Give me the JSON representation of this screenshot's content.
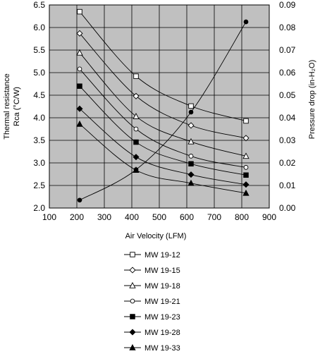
{
  "chart_data": {
    "type": "line",
    "xlabel": "Air Velocity (LFM)",
    "ylabel_left_line1": "Thermal resistance",
    "ylabel_left_line2": "Rca (°C/W)",
    "ylabel_right": "Pressure drop  (in-H₂O)",
    "xlim": [
      100,
      900
    ],
    "ylim_left": [
      2.0,
      6.5
    ],
    "ylim_right": [
      0.0,
      0.09
    ],
    "x_ticks": [
      "100",
      "200",
      "300",
      "400",
      "500",
      "600",
      "700",
      "800",
      "900"
    ],
    "y_left_ticks": [
      "2.0",
      "2.5",
      "3.0",
      "3.5",
      "4.0",
      "4.5",
      "5.0",
      "5.5",
      "6.0",
      "6.5"
    ],
    "y_right_ticks": [
      "0.00",
      "0.01",
      "0.02",
      "0.03",
      "0.04",
      "0.05",
      "0.06",
      "0.07",
      "0.08",
      "0.09"
    ],
    "grid": true,
    "background": "#c0c0c0",
    "series": [
      {
        "name": "MW 19-12",
        "marker": "square-open",
        "x": [
          200,
          400,
          600,
          800
        ],
        "y": [
          6.35,
          4.92,
          4.26,
          3.93
        ]
      },
      {
        "name": "MW 19-15",
        "marker": "diamond-open",
        "x": [
          200,
          400,
          600,
          800
        ],
        "y": [
          5.87,
          4.48,
          3.83,
          3.55
        ]
      },
      {
        "name": "MW 19-18",
        "marker": "triangle-open",
        "x": [
          200,
          400,
          600,
          800
        ],
        "y": [
          5.44,
          4.03,
          3.47,
          3.15
        ]
      },
      {
        "name": "MW 19-21",
        "marker": "circle-open",
        "x": [
          200,
          400,
          600,
          800
        ],
        "y": [
          5.08,
          3.75,
          3.15,
          2.9
        ]
      },
      {
        "name": "MW 19-23",
        "marker": "square-filled",
        "x": [
          200,
          400,
          600,
          800
        ],
        "y": [
          4.7,
          3.46,
          2.98,
          2.73
        ]
      },
      {
        "name": "MW 19-28",
        "marker": "diamond-filled",
        "x": [
          200,
          400,
          600,
          800
        ],
        "y": [
          4.2,
          3.13,
          2.74,
          2.52
        ]
      },
      {
        "name": "MW 19-33",
        "marker": "triangle-filled",
        "x": [
          200,
          400,
          600,
          800
        ],
        "y": [
          3.86,
          2.84,
          2.55,
          2.33
        ]
      }
    ],
    "pressure_drop": {
      "axis": "right",
      "marker": "circle-filled",
      "x": [
        200,
        400,
        600,
        800
      ],
      "y": [
        0.0035,
        0.017,
        0.0425,
        0.0825
      ]
    }
  }
}
